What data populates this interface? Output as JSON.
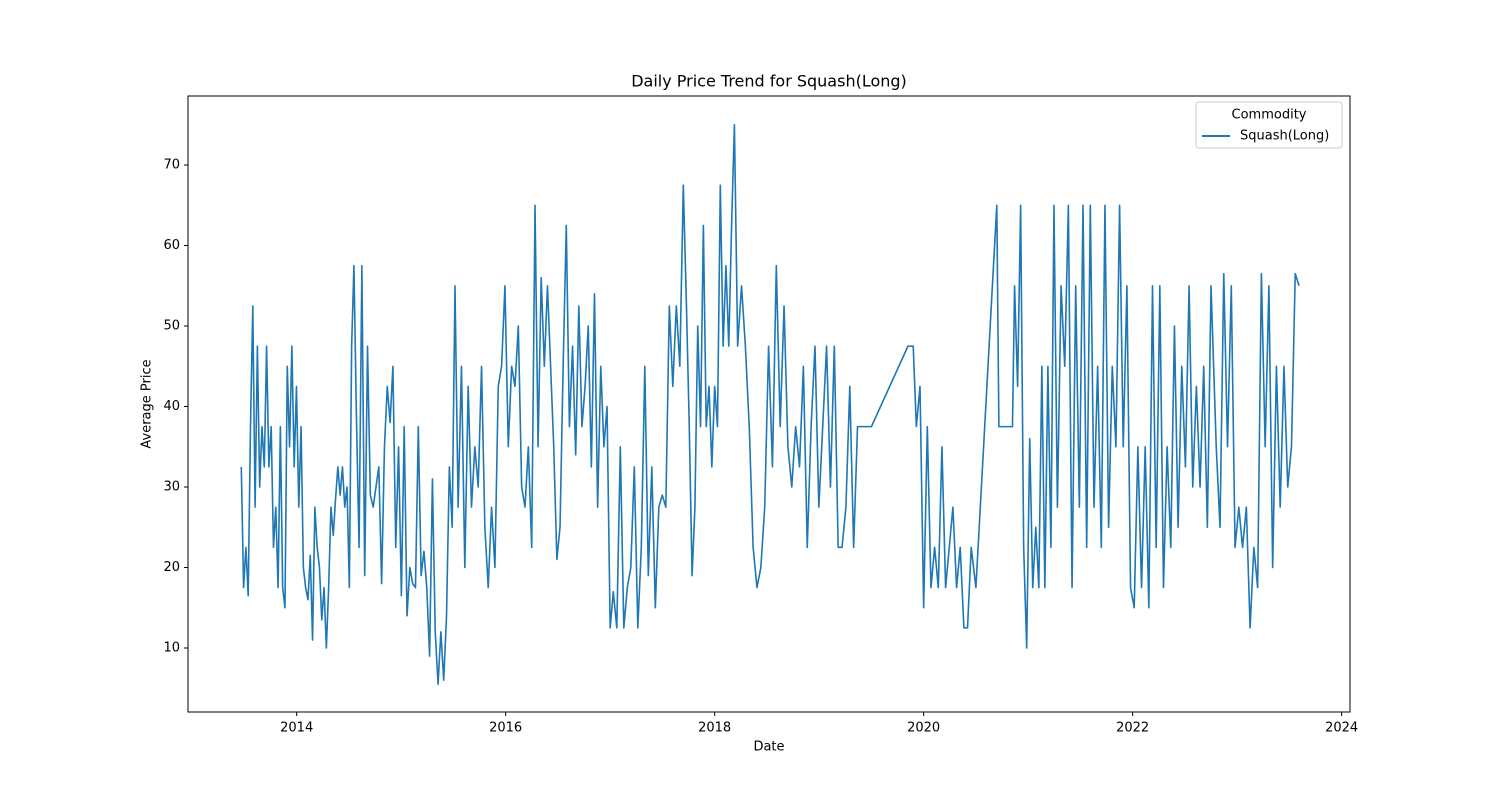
{
  "chart_data": {
    "type": "line",
    "title": "Daily Price Trend for Squash(Long)",
    "x_label": "Date",
    "y_label": "Average Price",
    "legend_title": "Commodity",
    "legend": "upper right",
    "xlim": [
      2012.96,
      2024.08
    ],
    "xticks": [
      2014,
      2016,
      2018,
      2020,
      2022,
      2024
    ],
    "ylim": [
      2.05,
      78.57
    ],
    "yticks": [
      10,
      20,
      30,
      40,
      50,
      60,
      70
    ],
    "x": [
      2013.47,
      2013.492,
      2013.514,
      2013.536,
      2013.558,
      2013.58,
      2013.602,
      2013.624,
      2013.646,
      2013.668,
      2013.69,
      2013.712,
      2013.734,
      2013.756,
      2013.778,
      2013.8,
      2013.822,
      2013.844,
      2013.866,
      2013.888,
      2013.91,
      2013.932,
      2013.954,
      2013.976,
      2013.998,
      2014.02,
      2014.042,
      2014.064,
      2014.086,
      2014.108,
      2014.13,
      2014.152,
      2014.174,
      2014.196,
      2014.218,
      2014.24,
      2014.262,
      2014.284,
      2014.306,
      2014.328,
      2014.35,
      2014.372,
      2014.394,
      2014.416,
      2014.438,
      2014.46,
      2014.482,
      2014.504,
      2014.526,
      2014.548,
      2014.57,
      2014.597,
      2014.624,
      2014.651,
      2014.678,
      2014.705,
      2014.732,
      2014.759,
      2014.786,
      2014.813,
      2014.84,
      2014.867,
      2014.894,
      2014.921,
      2014.948,
      2014.975,
      2015.002,
      2015.029,
      2015.056,
      2015.083,
      2015.11,
      2015.137,
      2015.164,
      2015.191,
      2015.218,
      2015.245,
      2015.272,
      2015.299,
      2015.326,
      2015.353,
      2015.38,
      2015.407,
      2015.434,
      2015.461,
      2015.488,
      2015.515,
      2015.545,
      2015.577,
      2015.609,
      2015.641,
      2015.673,
      2015.705,
      2015.737,
      2015.769,
      2015.801,
      2015.833,
      2015.865,
      2015.897,
      2015.929,
      2015.961,
      2015.993,
      2016.025,
      2016.057,
      2016.089,
      2016.121,
      2016.153,
      2016.185,
      2016.217,
      2016.249,
      2016.281,
      2016.31,
      2016.34,
      2016.37,
      2016.4,
      2016.43,
      2016.46,
      2016.49,
      2016.52,
      2016.55,
      2016.58,
      2016.61,
      2016.64,
      2016.67,
      2016.7,
      2016.73,
      2016.76,
      2016.79,
      2016.82,
      2016.85,
      2016.88,
      2016.91,
      2016.94,
      2016.97,
      2017.0,
      2017.03,
      2017.0635,
      2017.097,
      2017.1305,
      2017.164,
      2017.1975,
      2017.231,
      2017.2645,
      2017.298,
      2017.3315,
      2017.365,
      2017.3985,
      2017.432,
      2017.4655,
      2017.499,
      2017.5325,
      2017.566,
      2017.5995,
      2017.633,
      2017.6665,
      2017.7,
      2017.73,
      2017.757,
      2017.784,
      2017.811,
      2017.838,
      2017.865,
      2017.892,
      2017.919,
      2017.946,
      2017.973,
      2018.0,
      2018.027,
      2018.054,
      2018.081,
      2018.108,
      2018.135,
      2018.162,
      2018.189,
      2018.22,
      2018.257,
      2018.294,
      2018.331,
      2018.368,
      2018.405,
      2018.442,
      2018.479,
      2018.516,
      2018.553,
      2018.59,
      2018.627,
      2018.664,
      2018.701,
      2018.738,
      2018.775,
      2018.812,
      2018.849,
      2018.886,
      2018.923,
      2018.96,
      2018.997,
      2019.034,
      2019.071,
      2019.108,
      2019.145,
      2019.182,
      2019.219,
      2019.256,
      2019.293,
      2019.33,
      2019.367,
      2019.5,
      2019.85,
      2019.9,
      2019.93,
      2019.965,
      2020.0,
      2020.035,
      2020.07,
      2020.105,
      2020.14,
      2020.175,
      2020.21,
      2020.245,
      2020.28,
      2020.315,
      2020.35,
      2020.385,
      2020.42,
      2020.455,
      2020.5,
      2020.7,
      2020.72,
      2020.85,
      2020.87,
      2020.899,
      2020.928,
      2020.957,
      2020.986,
      2021.015,
      2021.044,
      2021.073,
      2021.102,
      2021.131,
      2021.16,
      2021.189,
      2021.218,
      2021.247,
      2021.28,
      2021.315,
      2021.35,
      2021.385,
      2021.42,
      2021.455,
      2021.49,
      2021.525,
      2021.56,
      2021.595,
      2021.63,
      2021.665,
      2021.7,
      2021.735,
      2021.77,
      2021.805,
      2021.84,
      2021.875,
      2021.91,
      2021.945,
      2021.98,
      2022.015,
      2022.05,
      2022.085,
      2022.12,
      2022.155,
      2022.19,
      2022.225,
      2022.26,
      2022.295,
      2022.33,
      2022.365,
      2022.4,
      2022.435,
      2022.47,
      2022.505,
      2022.54,
      2022.575,
      2022.61,
      2022.645,
      2022.68,
      2022.715,
      2022.75,
      2022.8,
      2022.836,
      2022.872,
      2022.908,
      2022.944,
      2022.98,
      2023.016,
      2023.052,
      2023.088,
      2023.124,
      2023.16,
      2023.196,
      2023.232,
      2023.268,
      2023.304,
      2023.34,
      2023.376,
      2023.412,
      2023.448,
      2023.484,
      2023.52,
      2023.556,
      2023.592
    ],
    "series": [
      {
        "name": "Squash(Long)",
        "color": "#1f77b4",
        "values": [
          32.5,
          17.5,
          22.5,
          16.5,
          37.5,
          52.5,
          27.5,
          47.5,
          30,
          37.5,
          32.5,
          47.5,
          32.5,
          37.5,
          22.5,
          27.5,
          17.5,
          37.5,
          17.5,
          15,
          45,
          35,
          47.5,
          32.5,
          42.5,
          27.5,
          37.5,
          20,
          17.5,
          16,
          21.5,
          11,
          27.5,
          22.5,
          20,
          13.5,
          17.5,
          10,
          17.5,
          27.5,
          24,
          28.5,
          32.5,
          29,
          32.5,
          27.5,
          30,
          17.5,
          47.5,
          57.5,
          40,
          22.5,
          57.5,
          19,
          47.5,
          29,
          27.5,
          30,
          32.5,
          18,
          35,
          42.5,
          38,
          45,
          22.5,
          35,
          16.5,
          37.5,
          14,
          20,
          18,
          17.5,
          37.5,
          19,
          22,
          17.5,
          9,
          31,
          12,
          5.5,
          12,
          6,
          14,
          32.5,
          25,
          55,
          27.5,
          45,
          20,
          42.5,
          27.5,
          35,
          30,
          45,
          25,
          17.5,
          27.5,
          20,
          42.5,
          45,
          55,
          35,
          45,
          42.5,
          50,
          30,
          27.5,
          35,
          22.5,
          65,
          35,
          56,
          45,
          55,
          45,
          35,
          21,
          25,
          45,
          62.5,
          37.5,
          47.5,
          34,
          52.5,
          37.5,
          42.5,
          50,
          32.5,
          54,
          27.5,
          45,
          35,
          40,
          12.5,
          17,
          12.5,
          35,
          12.5,
          17.5,
          20,
          32.5,
          12.5,
          22.5,
          45,
          19,
          32.5,
          15,
          27.5,
          29,
          27.5,
          52.5,
          42.5,
          52.5,
          45,
          67.5,
          52.5,
          37.5,
          19,
          27.5,
          50,
          37.5,
          62.5,
          37.5,
          42.5,
          32.5,
          42.5,
          37.5,
          67.5,
          47.5,
          57.5,
          47.5,
          62.5,
          75,
          47.5,
          55,
          47.5,
          37.5,
          22.5,
          17.5,
          20,
          27.5,
          47.5,
          32.5,
          57.5,
          37.5,
          52.5,
          35,
          30,
          37.5,
          32.5,
          45,
          22.5,
          37.5,
          47.5,
          27.5,
          37.5,
          47.5,
          30,
          47.5,
          22.5,
          22.5,
          27.5,
          42.5,
          22.5,
          37.5,
          37.5,
          47.5,
          47.5,
          37.5,
          42.5,
          15,
          37.5,
          17.5,
          22.5,
          17.5,
          35,
          17.5,
          22.5,
          27.5,
          17.5,
          22.5,
          12.5,
          12.5,
          22.5,
          17.5,
          65,
          37.5,
          37.5,
          55,
          42.5,
          65,
          22.5,
          10,
          36,
          17.5,
          25,
          17.5,
          45,
          17.5,
          45,
          22.5,
          65,
          27.5,
          55,
          45,
          65,
          17.5,
          55,
          27.5,
          65,
          22.5,
          65,
          27.5,
          45,
          22.5,
          65,
          25,
          45,
          35,
          65,
          35,
          55,
          17.5,
          15,
          35,
          17.5,
          35,
          15,
          55,
          22.5,
          55,
          17.5,
          35,
          22.5,
          50,
          25,
          45,
          32.5,
          55,
          30,
          42.5,
          30,
          45,
          25,
          55,
          35,
          25,
          56.5,
          35,
          55,
          22.5,
          27.5,
          22.5,
          27.5,
          12.5,
          22.5,
          17.5,
          56.5,
          35,
          55,
          20,
          45,
          27.5,
          45,
          30,
          35,
          56.5,
          55
        ]
      }
    ]
  }
}
